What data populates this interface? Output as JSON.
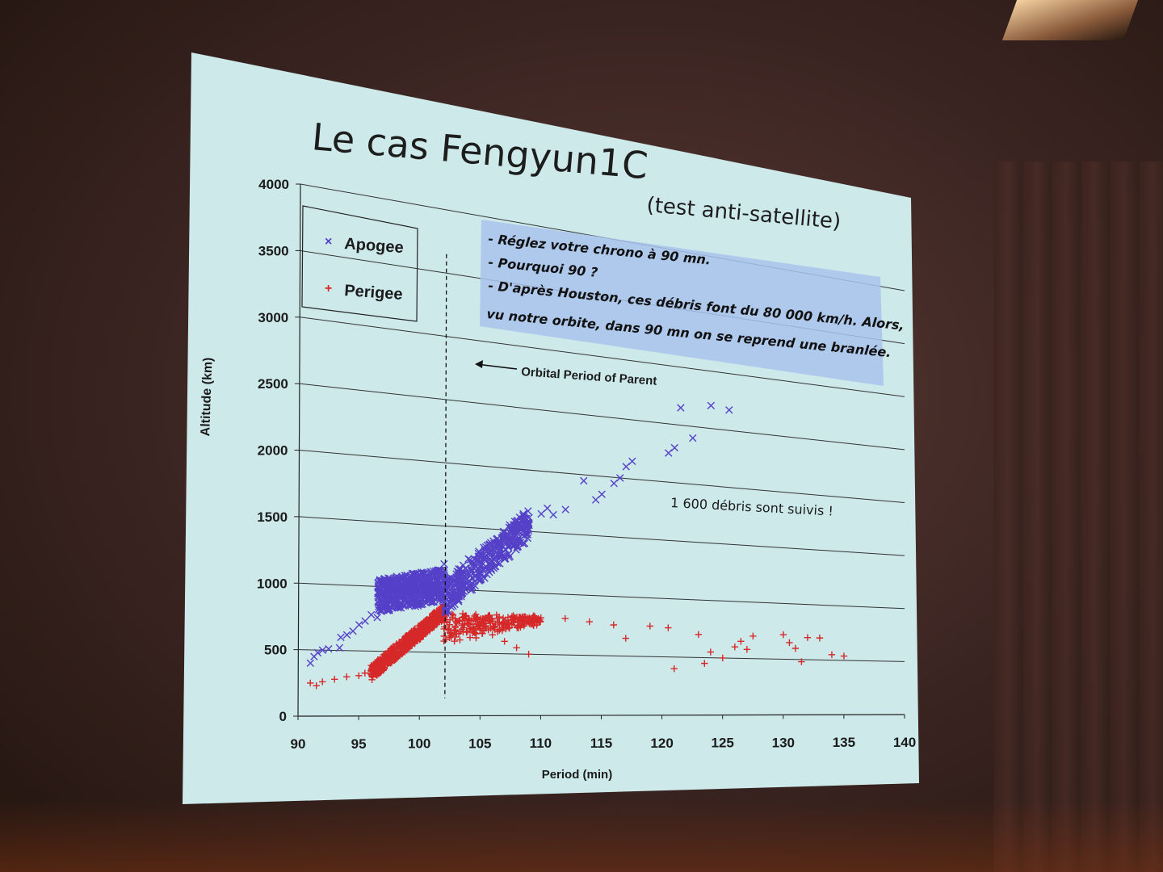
{
  "slide": {
    "title": "Le cas Fengyun1C",
    "subtitle": "(test anti-satellite)"
  },
  "note_box": {
    "lines": [
      "- Réglez votre chrono à 90 mn.",
      "- Pourquoi 90 ?",
      "- D'après Houston, ces débris font du 80 000 km/h. Alors,",
      "vu notre orbite, dans 90 mn on se reprend une branlée."
    ]
  },
  "colors": {
    "slide_bg": "#cde9ea",
    "apogee": "#5540c8",
    "perigee": "#d62828",
    "note_bg": "#a9c3ec",
    "grid": "#333333"
  },
  "chart_data": {
    "type": "scatter",
    "xlabel": "Period  (min)",
    "ylabel": "Altitude  (km)",
    "xlim": [
      90,
      140
    ],
    "ylim": [
      0,
      4000
    ],
    "xticks": [
      90,
      95,
      100,
      105,
      110,
      115,
      120,
      125,
      130,
      135,
      140
    ],
    "yticks": [
      0,
      500,
      1000,
      1500,
      2000,
      2500,
      3000,
      3500,
      4000
    ],
    "grid": true,
    "legend_position": "top-left",
    "annotations": [
      {
        "text": "Orbital Period of Parent",
        "x": 102.1
      },
      {
        "text": "1 600 débris sont suivis !"
      }
    ],
    "parent_period_line": 102.1,
    "series": [
      {
        "name": "Apogee",
        "marker": "x",
        "points": [
          [
            91,
            400
          ],
          [
            91.3,
            450
          ],
          [
            91.6,
            480
          ],
          [
            92,
            500
          ],
          [
            92.5,
            510
          ],
          [
            93.4,
            520
          ],
          [
            93.5,
            600
          ],
          [
            94,
            620
          ],
          [
            94.5,
            650
          ],
          [
            95,
            700
          ],
          [
            95.5,
            730
          ],
          [
            96,
            780
          ],
          [
            96.5,
            760
          ],
          [
            97,
            850
          ],
          [
            97.5,
            830
          ],
          [
            98,
            900
          ],
          [
            98.5,
            950
          ],
          [
            99,
            1000
          ],
          [
            99.5,
            1020
          ],
          [
            100.5,
            1100
          ],
          [
            101.5,
            1150
          ],
          [
            102,
            1200
          ],
          [
            102.5,
            1050
          ],
          [
            103,
            1100
          ],
          [
            103.5,
            1150
          ],
          [
            104,
            1250
          ],
          [
            104.5,
            1200
          ],
          [
            105,
            1300
          ],
          [
            105.5,
            1280
          ],
          [
            106,
            1350
          ],
          [
            106.5,
            1400
          ],
          [
            107,
            1450
          ],
          [
            107.5,
            1500
          ],
          [
            108,
            1550
          ],
          [
            108.5,
            1500
          ],
          [
            109,
            1550
          ],
          [
            110,
            1650
          ],
          [
            110.5,
            1700
          ],
          [
            111,
            1650
          ],
          [
            112,
            1700
          ],
          [
            113.5,
            1950
          ],
          [
            114.5,
            1800
          ],
          [
            115,
            1850
          ],
          [
            116,
            1950
          ],
          [
            116.5,
            2000
          ],
          [
            117,
            2100
          ],
          [
            117.5,
            2150
          ],
          [
            120.5,
            2250
          ],
          [
            121,
            2300
          ],
          [
            121.5,
            2650
          ],
          [
            122.5,
            2400
          ],
          [
            124,
            2700
          ],
          [
            125.5,
            2680
          ]
        ]
      },
      {
        "name": "Perigee",
        "marker": "+",
        "points": [
          [
            91,
            250
          ],
          [
            91.5,
            230
          ],
          [
            92,
            260
          ],
          [
            93,
            280
          ],
          [
            94,
            300
          ],
          [
            95,
            310
          ],
          [
            95.5,
            330
          ],
          [
            96,
            350
          ],
          [
            97,
            400
          ],
          [
            98,
            450
          ],
          [
            99,
            520
          ],
          [
            100,
            600
          ],
          [
            101,
            700
          ],
          [
            102,
            800
          ],
          [
            102.5,
            760
          ],
          [
            103,
            750
          ],
          [
            104,
            740
          ],
          [
            105,
            700
          ],
          [
            106,
            650
          ],
          [
            107,
            600
          ],
          [
            108,
            550
          ],
          [
            109,
            500
          ],
          [
            110,
            800
          ],
          [
            112,
            800
          ],
          [
            114,
            780
          ],
          [
            116,
            760
          ],
          [
            117,
            650
          ],
          [
            119,
            760
          ],
          [
            120.5,
            750
          ],
          [
            121,
            400
          ],
          [
            123,
            700
          ],
          [
            123.5,
            450
          ],
          [
            124,
            550
          ],
          [
            125,
            500
          ],
          [
            126,
            600
          ],
          [
            126.5,
            650
          ],
          [
            127,
            580
          ],
          [
            127.5,
            700
          ],
          [
            130,
            720
          ],
          [
            130.5,
            650
          ],
          [
            131,
            600
          ],
          [
            131.5,
            480
          ],
          [
            132,
            700
          ],
          [
            133,
            700
          ],
          [
            134,
            550
          ],
          [
            135,
            540
          ]
        ]
      }
    ]
  }
}
